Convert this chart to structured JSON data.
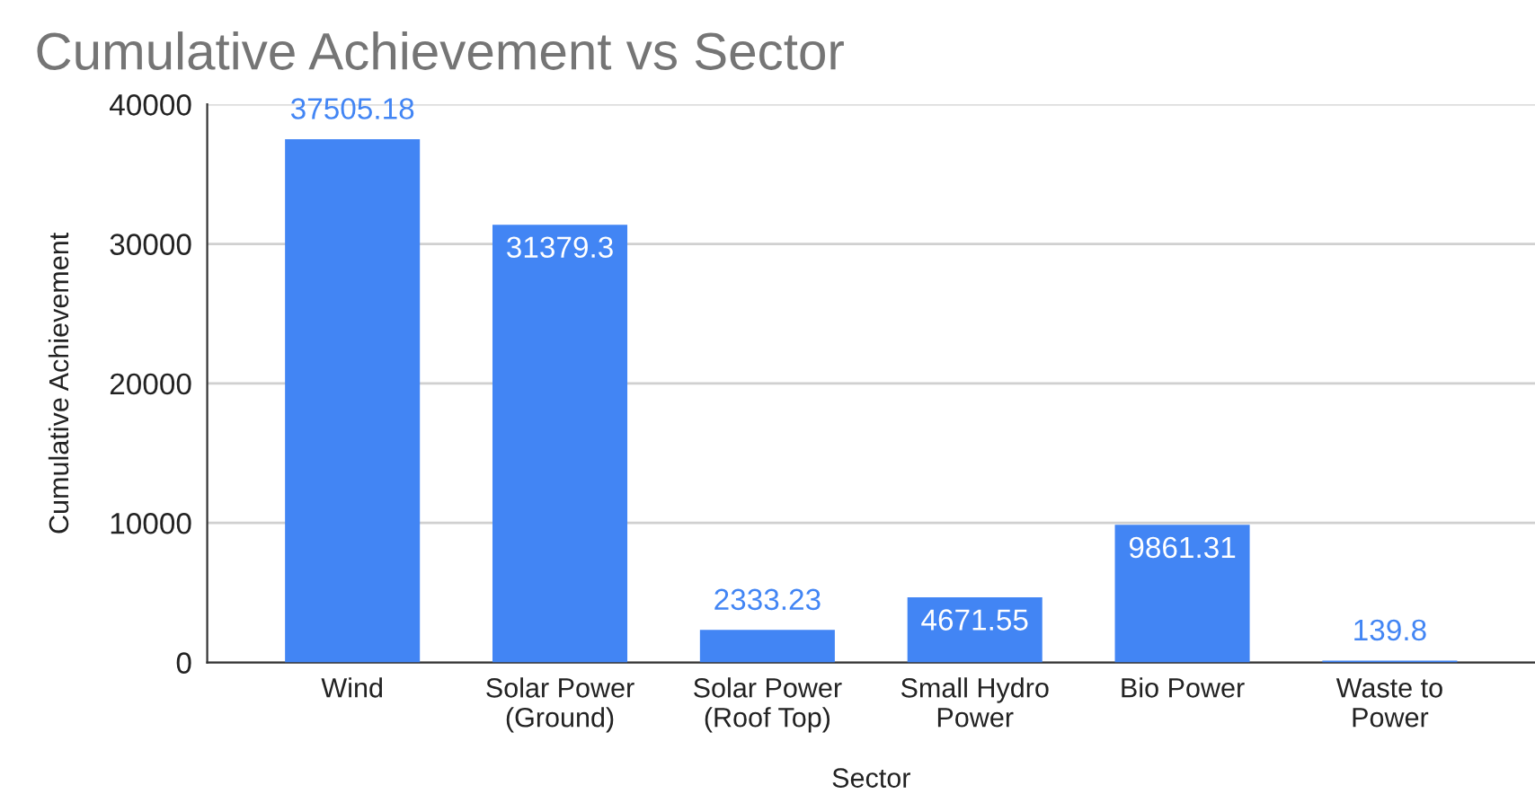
{
  "chart_data": {
    "type": "bar",
    "title": "Cumulative Achievement vs Sector",
    "xlabel": "Sector",
    "ylabel": "Cumulative Achievement",
    "categories": [
      "Wind",
      "Solar Power\n(Ground)",
      "Solar Power\n(Roof Top)",
      "Small Hydro\nPower",
      "Bio Power",
      "Waste to\nPower"
    ],
    "values": [
      37505.18,
      31379.3,
      2333.23,
      4671.55,
      9861.31,
      139.8
    ],
    "color": "#4285f4",
    "data_labels": true,
    "value_labels": [
      "37505.18",
      "31379.3",
      "2333.23",
      "4671.55",
      "9861.31",
      "139.8"
    ],
    "ylim": [
      0,
      40000
    ],
    "yticks": [
      0,
      10000,
      20000,
      30000,
      40000
    ],
    "grid": "y",
    "legend": false
  }
}
